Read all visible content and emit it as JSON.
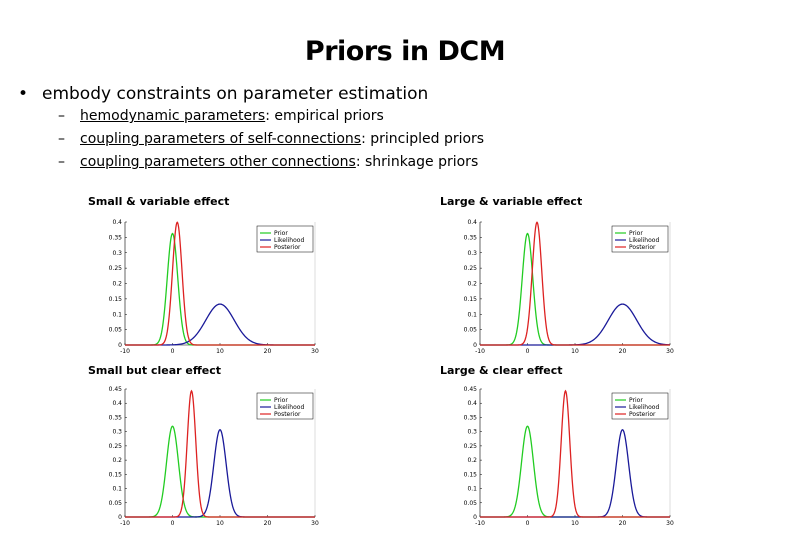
{
  "slide": {
    "title": "Priors in DCM",
    "bullet": "embody constraints on parameter estimation",
    "subs": [
      {
        "u": "hemodynamic parameters",
        "rest": ": empirical priors"
      },
      {
        "u": "coupling parameters of self-connections",
        "rest": ": principled priors"
      },
      {
        "u": "coupling parameters other connections",
        "rest": ": shrinkage priors"
      }
    ],
    "bullet_glyph": "•",
    "dash_glyph": "–"
  },
  "chart_data": [
    {
      "type": "line",
      "label": "Small & variable effect",
      "xlim": [
        -10,
        30
      ],
      "ylim": [
        0,
        0.4
      ],
      "xticks": [
        -10,
        0,
        10,
        20,
        30
      ],
      "yticks": [
        "0",
        "0.05",
        "0.1",
        "0.15",
        "0.2",
        "0.25",
        "0.3",
        "0.35",
        "0.4"
      ],
      "series": [
        {
          "name": "Prior",
          "color": "#22cc22",
          "mean": 0,
          "sd": 1.1
        },
        {
          "name": "Likelihood",
          "color": "#1a1a99",
          "mean": 10,
          "sd": 3
        },
        {
          "name": "Posterior",
          "color": "#dd2222",
          "mean": 1,
          "sd": 1.0
        }
      ]
    },
    {
      "type": "line",
      "label": "Large & variable effect",
      "xlim": [
        -10,
        30
      ],
      "ylim": [
        0,
        0.4
      ],
      "xticks": [
        -10,
        0,
        10,
        20,
        30
      ],
      "yticks": [
        "0",
        "0.05",
        "0.1",
        "0.15",
        "0.2",
        "0.25",
        "0.3",
        "0.35",
        "0.4"
      ],
      "series": [
        {
          "name": "Prior",
          "color": "#22cc22",
          "mean": 0,
          "sd": 1.1
        },
        {
          "name": "Likelihood",
          "color": "#1a1a99",
          "mean": 20,
          "sd": 3
        },
        {
          "name": "Posterior",
          "color": "#dd2222",
          "mean": 2,
          "sd": 1.0
        }
      ]
    },
    {
      "type": "line",
      "label": "Small but clear effect",
      "xlim": [
        -10,
        30
      ],
      "ylim": [
        0,
        0.45
      ],
      "xticks": [
        -10,
        0,
        10,
        20,
        30
      ],
      "yticks": [
        "0",
        "0.05",
        "0.1",
        "0.15",
        "0.2",
        "0.25",
        "0.3",
        "0.35",
        "0.4",
        "0.45"
      ],
      "series": [
        {
          "name": "Prior",
          "color": "#22cc22",
          "mean": 0,
          "sd": 1.25
        },
        {
          "name": "Likelihood",
          "color": "#1a1a99",
          "mean": 10,
          "sd": 1.3
        },
        {
          "name": "Posterior",
          "color": "#dd2222",
          "mean": 4,
          "sd": 0.9
        }
      ]
    },
    {
      "type": "line",
      "label": "Large & clear effect",
      "xlim": [
        -10,
        30
      ],
      "ylim": [
        0,
        0.45
      ],
      "xticks": [
        -10,
        0,
        10,
        20,
        30
      ],
      "yticks": [
        "0",
        "0.05",
        "0.1",
        "0.15",
        "0.2",
        "0.25",
        "0.3",
        "0.35",
        "0.4",
        "0.45"
      ],
      "series": [
        {
          "name": "Prior",
          "color": "#22cc22",
          "mean": 0,
          "sd": 1.25
        },
        {
          "name": "Likelihood",
          "color": "#1a1a99",
          "mean": 20,
          "sd": 1.3
        },
        {
          "name": "Posterior",
          "color": "#dd2222",
          "mean": 8,
          "sd": 0.9
        }
      ]
    }
  ]
}
